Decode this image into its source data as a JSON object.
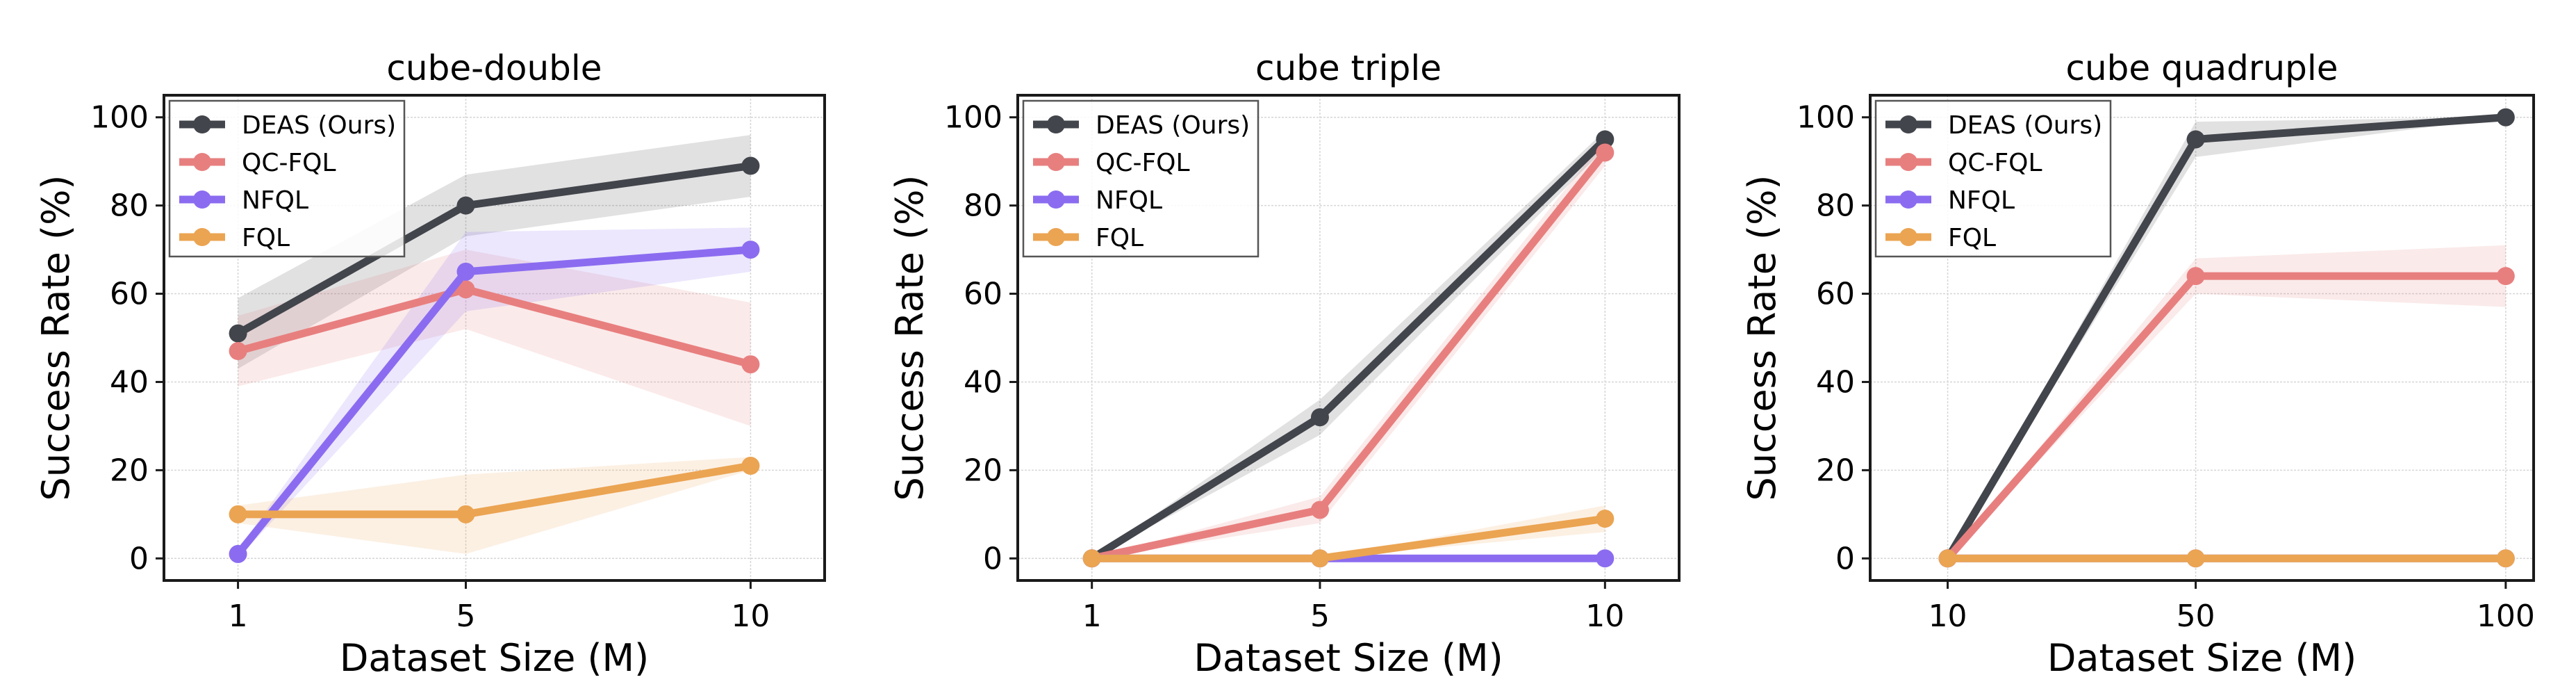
{
  "colors": {
    "DEAS (Ours)": "#42454b",
    "QC-FQL": "#e87f7f",
    "NFQL": "#8b6cf0",
    "FQL": "#eba452"
  },
  "legend": {
    "entries": [
      "DEAS (Ours)",
      "QC-FQL",
      "NFQL",
      "FQL"
    ],
    "placement": "top-left"
  },
  "chart_data": [
    {
      "type": "line",
      "title": "cube-double",
      "xlabel": "Dataset Size (M)",
      "ylabel": "Success Rate (%)",
      "x": [
        1,
        5,
        10
      ],
      "xticks": [
        "1",
        "5",
        "10"
      ],
      "xlim": [
        -0.3,
        11.3
      ],
      "ylim": [
        -5,
        105
      ],
      "yticks": [
        0,
        20,
        40,
        60,
        80,
        100
      ],
      "grid": true,
      "legend": "top-left",
      "series": [
        {
          "name": "DEAS (Ours)",
          "values": [
            51,
            80,
            89
          ],
          "lower": [
            43,
            73,
            82
          ],
          "upper": [
            59,
            87,
            96
          ]
        },
        {
          "name": "QC-FQL",
          "values": [
            47,
            61,
            44
          ],
          "lower": [
            39,
            52,
            30
          ],
          "upper": [
            55,
            70,
            58
          ]
        },
        {
          "name": "NFQL",
          "values": [
            1,
            65,
            70
          ],
          "lower": [
            0,
            56,
            65
          ],
          "upper": [
            2,
            74,
            75
          ]
        },
        {
          "name": "FQL",
          "values": [
            10,
            10,
            21
          ],
          "lower": [
            8,
            1,
            20
          ],
          "upper": [
            12,
            19,
            23
          ]
        }
      ]
    },
    {
      "type": "line",
      "title": "cube triple",
      "xlabel": "Dataset Size (M)",
      "ylabel": "Success Rate (%)",
      "x": [
        1,
        5,
        10
      ],
      "xticks": [
        "1",
        "5",
        "10"
      ],
      "xlim": [
        -0.3,
        11.3
      ],
      "ylim": [
        -5,
        105
      ],
      "yticks": [
        0,
        20,
        40,
        60,
        80,
        100
      ],
      "grid": true,
      "legend": "top-left",
      "series": [
        {
          "name": "DEAS (Ours)",
          "values": [
            0,
            32,
            95
          ],
          "lower": [
            0,
            28,
            93
          ],
          "upper": [
            0,
            36,
            97
          ]
        },
        {
          "name": "QC-FQL",
          "values": [
            0,
            11,
            92
          ],
          "lower": [
            0,
            8,
            89
          ],
          "upper": [
            0,
            14,
            95
          ]
        },
        {
          "name": "NFQL",
          "values": [
            0,
            0,
            0
          ],
          "lower": [
            0,
            0,
            0
          ],
          "upper": [
            0,
            0,
            0
          ]
        },
        {
          "name": "FQL",
          "values": [
            0,
            0,
            9
          ],
          "lower": [
            0,
            0,
            6
          ],
          "upper": [
            0,
            0,
            12
          ]
        }
      ]
    },
    {
      "type": "line",
      "title": "cube quadruple",
      "xlabel": "Dataset Size (M)",
      "ylabel": "Success Rate (%)",
      "x": [
        10,
        50,
        100
      ],
      "xticks": [
        "10",
        "50",
        "100"
      ],
      "xlim": [
        -2.5,
        104.5
      ],
      "ylim": [
        -5,
        105
      ],
      "yticks": [
        0,
        20,
        40,
        60,
        80,
        100
      ],
      "grid": true,
      "legend": "top-left",
      "series": [
        {
          "name": "DEAS (Ours)",
          "values": [
            0,
            95,
            100
          ],
          "lower": [
            0,
            91,
            100
          ],
          "upper": [
            0,
            99,
            100
          ]
        },
        {
          "name": "QC-FQL",
          "values": [
            0,
            64,
            64
          ],
          "lower": [
            0,
            60,
            57
          ],
          "upper": [
            0,
            68,
            71
          ]
        },
        {
          "name": "NFQL",
          "values": [
            0,
            0,
            0
          ],
          "lower": [
            0,
            0,
            0
          ],
          "upper": [
            0,
            0,
            0
          ]
        },
        {
          "name": "FQL",
          "values": [
            0,
            0,
            0
          ],
          "lower": [
            0,
            0,
            0
          ],
          "upper": [
            0,
            0,
            0
          ]
        }
      ]
    }
  ]
}
